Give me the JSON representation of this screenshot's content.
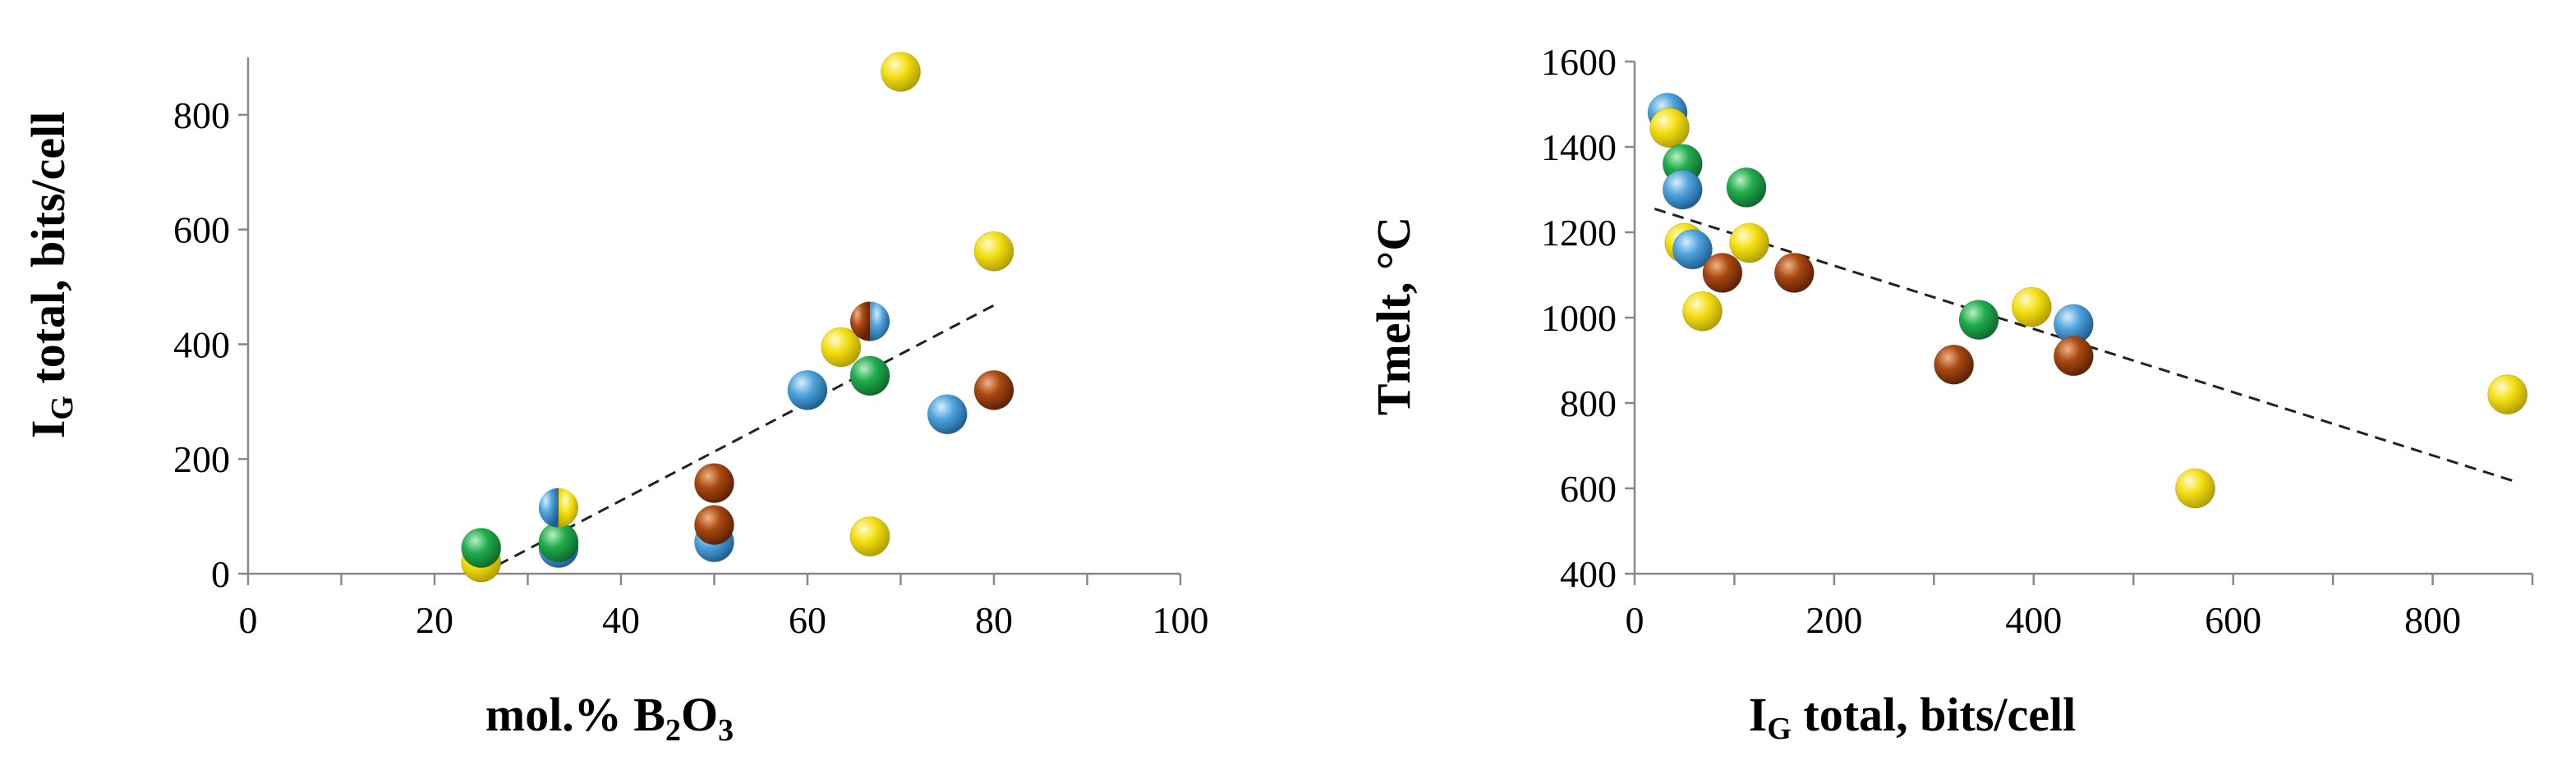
{
  "colors": {
    "blue": "#3f96d2",
    "yellow": "#f2dc10",
    "green": "#1fa649",
    "brown": "#a0440e",
    "trend": "#222222"
  },
  "chart_data": [
    {
      "type": "scatter",
      "xlabel": "mol.% B2O3",
      "xlabel_parts": {
        "a": "mol.% B",
        "sub1": "2",
        "b": "O",
        "sub2": "3"
      },
      "ylabel": "IG total, bits/cell",
      "ylabel_parts": {
        "a": "I",
        "sub": "G",
        "b": " total, bits/cell"
      },
      "xlim": [
        0,
        100
      ],
      "ylim": [
        0,
        900
      ],
      "xticks": [
        0,
        20,
        40,
        60,
        80,
        100
      ],
      "yticks": [
        0,
        200,
        400,
        600,
        800
      ],
      "grid": false,
      "trendline": {
        "x": [
          25,
          80
        ],
        "y": [
          0,
          468
        ]
      },
      "points": [
        {
          "x": 25,
          "y": 20,
          "color": "yellow"
        },
        {
          "x": 25,
          "y": 45,
          "color": "green"
        },
        {
          "x": 33.3,
          "y": 45,
          "color": "blue"
        },
        {
          "x": 33.3,
          "y": 55,
          "color": "green"
        },
        {
          "x": 33.3,
          "y": 115,
          "color": "blue-yellow"
        },
        {
          "x": 50,
          "y": 55,
          "color": "blue"
        },
        {
          "x": 50,
          "y": 85,
          "color": "brown"
        },
        {
          "x": 50,
          "y": 158,
          "color": "brown"
        },
        {
          "x": 60,
          "y": 320,
          "color": "blue"
        },
        {
          "x": 63.6,
          "y": 395,
          "color": "yellow"
        },
        {
          "x": 66.7,
          "y": 440,
          "color": "brown-blue"
        },
        {
          "x": 66.7,
          "y": 345,
          "color": "green"
        },
        {
          "x": 66.7,
          "y": 65,
          "color": "yellow"
        },
        {
          "x": 70,
          "y": 875,
          "color": "yellow"
        },
        {
          "x": 75,
          "y": 278,
          "color": "blue"
        },
        {
          "x": 80,
          "y": 562,
          "color": "yellow"
        },
        {
          "x": 80,
          "y": 320,
          "color": "brown"
        }
      ]
    },
    {
      "type": "scatter",
      "xlabel": "IG total, bits/cell",
      "xlabel_parts": {
        "a": "I",
        "sub": "G",
        "b": " total, bits/cell"
      },
      "ylabel": "Tmelt, °C",
      "xlim": [
        0,
        900
      ],
      "ylim": [
        400,
        1600
      ],
      "xticks": [
        0,
        200,
        400,
        600,
        800
      ],
      "yticks": [
        400,
        600,
        800,
        1000,
        1200,
        1400,
        1600
      ],
      "grid": false,
      "trendline": {
        "x": [
          20,
          880
        ],
        "y": [
          1255,
          618
        ]
      },
      "points": [
        {
          "x": 33,
          "y": 1480,
          "color": "blue"
        },
        {
          "x": 35,
          "y": 1445,
          "color": "yellow"
        },
        {
          "x": 48,
          "y": 1360,
          "color": "green"
        },
        {
          "x": 48,
          "y": 1300,
          "color": "blue"
        },
        {
          "x": 50,
          "y": 1175,
          "color": "yellow"
        },
        {
          "x": 58,
          "y": 1160,
          "color": "blue"
        },
        {
          "x": 68,
          "y": 1015,
          "color": "yellow"
        },
        {
          "x": 88,
          "y": 1105,
          "color": "brown"
        },
        {
          "x": 112,
          "y": 1305,
          "color": "green"
        },
        {
          "x": 115,
          "y": 1175,
          "color": "yellow"
        },
        {
          "x": 160,
          "y": 1105,
          "color": "brown"
        },
        {
          "x": 320,
          "y": 890,
          "color": "brown"
        },
        {
          "x": 345,
          "y": 995,
          "color": "green"
        },
        {
          "x": 398,
          "y": 1025,
          "color": "yellow"
        },
        {
          "x": 440,
          "y": 985,
          "color": "blue"
        },
        {
          "x": 440,
          "y": 910,
          "color": "brown"
        },
        {
          "x": 562,
          "y": 600,
          "color": "yellow"
        },
        {
          "x": 875,
          "y": 820,
          "color": "yellow"
        }
      ]
    }
  ]
}
